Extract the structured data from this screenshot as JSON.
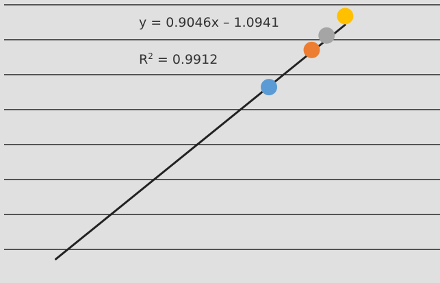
{
  "chart_data": {
    "type": "scatter",
    "title": "",
    "xlabel": "",
    "ylabel": "",
    "grid": true,
    "legend": "none",
    "points": [
      {
        "x": 4.24,
        "y": 2.73,
        "color": "#5b9bd5"
      },
      {
        "x": 4.93,
        "y": 3.4,
        "color": "#ed7d31"
      },
      {
        "x": 5.17,
        "y": 3.66,
        "color": "#a5a5a5"
      },
      {
        "x": 5.47,
        "y": 4.01,
        "color": "#ffc000"
      }
    ],
    "trendline": {
      "type": "linear",
      "x_start": 0.8,
      "x_end": 5.47,
      "slope": 0.9046,
      "intercept": -1.0941,
      "color": "#222222"
    },
    "annotations": {
      "equation": "y = 0.9046x – 1.0941",
      "r_squared_label": "R",
      "r_squared_sup": "2",
      "r_squared_value": " = 0.9912"
    }
  },
  "colors": {
    "plot_background": "#e0e0e0",
    "gridline": "#000000"
  }
}
